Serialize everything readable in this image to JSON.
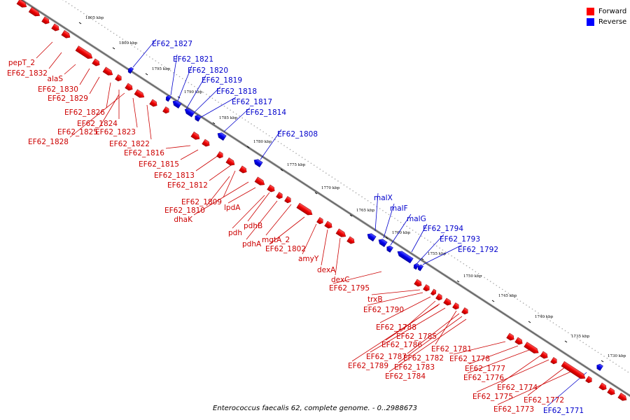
{
  "legend": {
    "forward_label": "Forward",
    "reverse_label": "Reverse",
    "forward_color": "#ff0000",
    "reverse_color": "#0000ff"
  },
  "caption": "Enterococcus faecalis 62, complete genome. - 0..2988673",
  "ticks": [
    "1805 kbp",
    "1800 kbp",
    "1795 kbp",
    "1790 kbp",
    "1785 kbp",
    "1780 kbp",
    "1775 kbp",
    "1770 kbp",
    "1765 kbp",
    "1760 kbp",
    "1755 kbp",
    "1750 kbp",
    "1745 kbp",
    "1740 kbp",
    "1735 kbp",
    "1730 kbp"
  ],
  "forward_genes": [
    "pepT_2",
    "EF62_1832",
    "alaS",
    "EF62_1830",
    "EF62_1829",
    "EF62_1826",
    "EF62_1824",
    "EF62_1825",
    "EF62_1823",
    "EF62_1828",
    "EF62_1822",
    "EF62_1816",
    "EF62_1815",
    "EF62_1813",
    "EF62_1812",
    "EF62_1809",
    "EF62_1810",
    "dhaK",
    "lpdA",
    "pdhB",
    "pdh",
    "pdhA",
    "mgtA_2",
    "EF62_1802",
    "amyY",
    "dexA",
    "dexC",
    "EF62_1795",
    "trxB",
    "EF62_1790",
    "EF62_1788",
    "EF62_1785",
    "EF62_1786",
    "EF62_1781",
    "EF62_1787",
    "EF62_1782",
    "EF62_1778",
    "EF62_1789",
    "EF62_1783",
    "EF62_1777",
    "EF62_1784",
    "EF62_1776",
    "EF62_1774",
    "EF62_1775",
    "EF62_1772",
    "EF62_1773"
  ],
  "reverse_genes": [
    "EF62_1827",
    "EF62_1821",
    "EF62_1820",
    "EF62_1819",
    "EF62_1818",
    "EF62_1817",
    "EF62_1814",
    "EF62_1808",
    "malX",
    "malF",
    "malG",
    "EF62_1794",
    "EF62_1793",
    "EF62_1792",
    "EF62_1771"
  ]
}
